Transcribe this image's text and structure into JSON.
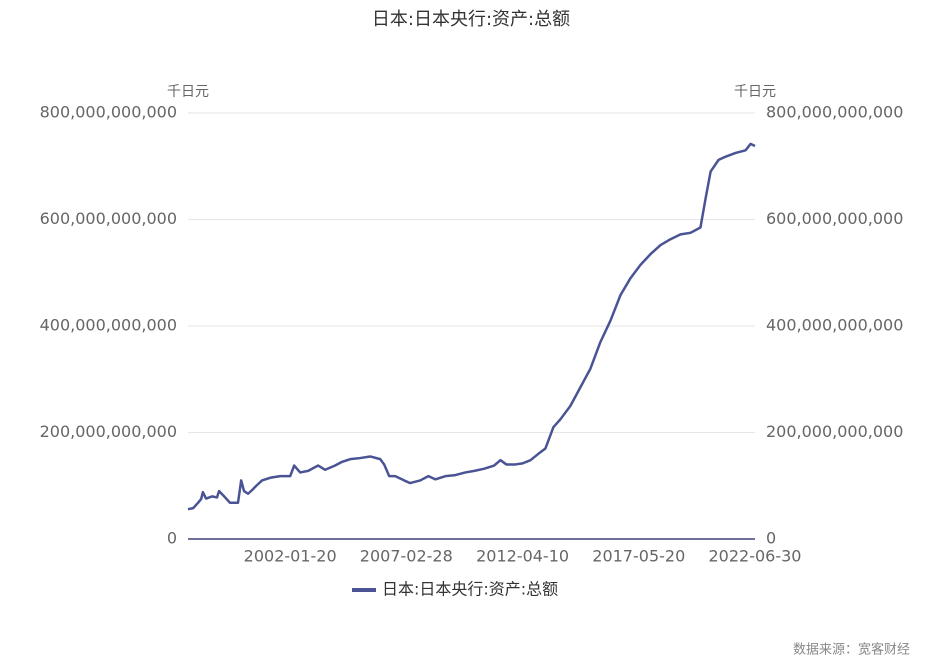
{
  "chart_data": {
    "type": "line",
    "title": "日本:日本央行:资产:总额",
    "y_unit": "千日元",
    "y2_unit": "千日元",
    "source": "数据来源：宽客财经",
    "x": [
      "1997-07-24",
      "1997-10-15",
      "1998-01-01",
      "1998-02-20",
      "1998-03-20",
      "1998-05-10",
      "1998-08-15",
      "1998-11-01",
      "1998-12-05",
      "1999-02-25",
      "1999-05-30",
      "1999-10-05",
      "1999-11-25",
      "2000-01-10",
      "2000-03-15",
      "2000-05-20",
      "2000-07-25",
      "2000-10-25",
      "2001-03-05",
      "2001-08-12",
      "2002-01-20",
      "2002-03-25",
      "2002-06-30",
      "2002-11-05",
      "2003-04-15",
      "2003-08-05",
      "2004-01-12",
      "2004-05-05",
      "2004-09-10",
      "2005-02-17",
      "2005-07-28",
      "2006-01-05",
      "2006-03-10",
      "2006-05-30",
      "2006-09-03",
      "2007-01-25",
      "2007-05-01",
      "2007-10-10",
      "2008-02-18",
      "2008-06-10",
      "2008-11-18",
      "2009-04-25",
      "2009-10-05",
      "2010-02-25",
      "2010-08-05",
      "2011-01-10",
      "2011-04-20",
      "2011-07-25",
      "2011-12-15",
      "2012-04-10",
      "2012-08-15",
      "2012-12-20",
      "2013-04-12",
      "2013-08-18",
      "2013-12-10",
      "2014-05-18",
      "2014-10-26",
      "2015-04-05",
      "2015-09-12",
      "2016-02-20",
      "2016-07-30",
      "2017-01-08",
      "2017-06-18",
      "2017-11-25",
      "2018-05-05",
      "2018-10-12",
      "2019-03-22",
      "2019-08-29",
      "2020-02-05",
      "2020-04-28",
      "2020-07-17",
      "2020-11-22",
      "2021-03-15",
      "2021-08-22",
      "2022-01-30",
      "2022-04-20",
      "2022-06-30"
    ],
    "series": [
      {
        "name": "日本:日本央行:资产:总额",
        "color": "#4a5494",
        "values": [
          56000000000,
          58000000000,
          68000000000,
          75000000000,
          88000000000,
          76000000000,
          80000000000,
          78000000000,
          90000000000,
          80000000000,
          68000000000,
          68000000000,
          110000000000,
          90000000000,
          85000000000,
          92000000000,
          100000000000,
          110000000000,
          115000000000,
          118000000000,
          118000000000,
          138000000000,
          125000000000,
          128000000000,
          138000000000,
          130000000000,
          138000000000,
          145000000000,
          150000000000,
          152000000000,
          155000000000,
          150000000000,
          140000000000,
          118000000000,
          118000000000,
          110000000000,
          105000000000,
          110000000000,
          118000000000,
          112000000000,
          118000000000,
          120000000000,
          125000000000,
          128000000000,
          132000000000,
          138000000000,
          148000000000,
          140000000000,
          140000000000,
          142000000000,
          148000000000,
          160000000000,
          170000000000,
          210000000000,
          225000000000,
          250000000000,
          285000000000,
          320000000000,
          370000000000,
          410000000000,
          458000000000,
          490000000000,
          515000000000,
          535000000000,
          552000000000,
          563000000000,
          572000000000,
          575000000000,
          585000000000,
          640000000000,
          690000000000,
          712000000000,
          718000000000,
          725000000000,
          730000000000,
          742000000000,
          738000000000
        ]
      }
    ],
    "xlim": [
      "1997-07-24",
      "2022-06-30"
    ],
    "xticks": [
      "2002-01-20",
      "2007-02-28",
      "2012-04-10",
      "2017-05-20",
      "2022-06-30"
    ],
    "ylim": [
      0,
      800000000000
    ],
    "yticks": [
      0,
      {
        "value": 200000000000,
        "label": "200,000,000,000"
      },
      {
        "value": 400000000000,
        "label": "400,000,000,000"
      },
      {
        "value": 600000000000,
        "label": "600,000,000,000"
      },
      {
        "value": 800000000000,
        "label": "800,000,000,000"
      }
    ],
    "y2lim": [
      0,
      800000000000
    ],
    "y2ticks": [
      0,
      {
        "value": 200000000000,
        "label": "200,000,000,000"
      },
      {
        "value": 400000000000,
        "label": "400,000,000,000"
      },
      {
        "value": 600000000000,
        "label": "600,000,000,000"
      },
      {
        "value": 800000000000,
        "label": "800,000,000,000"
      }
    ],
    "grid": true
  }
}
